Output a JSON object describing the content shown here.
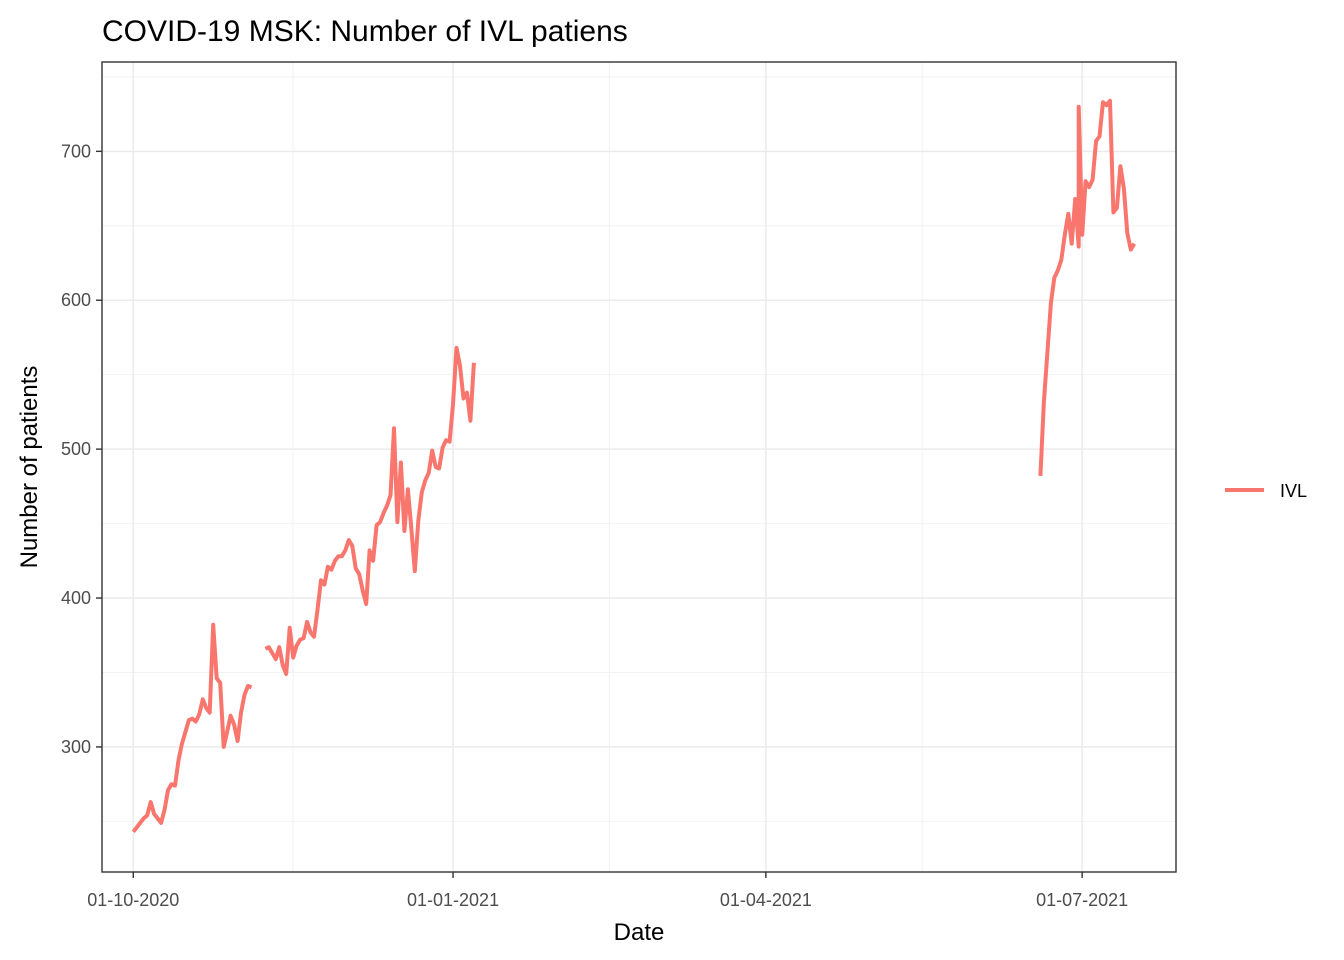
{
  "chart_data": {
    "type": "line",
    "title": "COVID-19 MSK: Number of IVL patiens",
    "xlabel": "Date",
    "ylabel": "Number of patients",
    "x_range": [
      "2020-09-22",
      "2021-07-28"
    ],
    "ylim": [
      216,
      760
    ],
    "x_ticks": [
      {
        "date": "2020-10-01",
        "label": "01-10-2020"
      },
      {
        "date": "2021-01-01",
        "label": "01-01-2021"
      },
      {
        "date": "2021-04-01",
        "label": "01-04-2021"
      },
      {
        "date": "2021-07-01",
        "label": "01-07-2021"
      }
    ],
    "x_minor_ticks": [
      "2020-11-16",
      "2021-02-15",
      "2021-05-16"
    ],
    "y_ticks": [
      300,
      400,
      500,
      600,
      700
    ],
    "y_minor_ticks": [
      250,
      350,
      450,
      550,
      650,
      750
    ],
    "grid": true,
    "legend_position": "right",
    "series": [
      {
        "name": "IVL",
        "color": "#F8766D",
        "segments": [
          [
            [
              "2020-10-01",
              243
            ],
            [
              "2020-10-02",
              246
            ],
            [
              "2020-10-03",
              249
            ],
            [
              "2020-10-04",
              252
            ],
            [
              "2020-10-05",
              254
            ],
            [
              "2020-10-06",
              263
            ],
            [
              "2020-10-07",
              255
            ],
            [
              "2020-10-08",
              252
            ],
            [
              "2020-10-09",
              249
            ],
            [
              "2020-10-10",
              258
            ],
            [
              "2020-10-11",
              271
            ],
            [
              "2020-10-12",
              275
            ],
            [
              "2020-10-13",
              274
            ],
            [
              "2020-10-14",
              291
            ],
            [
              "2020-10-15",
              302
            ],
            [
              "2020-10-16",
              310
            ],
            [
              "2020-10-17",
              318
            ],
            [
              "2020-10-18",
              319
            ],
            [
              "2020-10-19",
              317
            ],
            [
              "2020-10-20",
              322
            ],
            [
              "2020-10-21",
              332
            ],
            [
              "2020-10-22",
              326
            ],
            [
              "2020-10-23",
              323
            ],
            [
              "2020-10-24",
              382
            ],
            [
              "2020-10-25",
              346
            ],
            [
              "2020-10-26",
              343
            ],
            [
              "2020-10-27",
              300
            ],
            [
              "2020-10-28",
              310
            ],
            [
              "2020-10-29",
              321
            ],
            [
              "2020-10-30",
              315
            ],
            [
              "2020-10-31",
              304
            ],
            [
              "2020-11-01",
              323
            ],
            [
              "2020-11-02",
              335
            ],
            [
              "2020-11-03",
              341
            ],
            [
              "2020-11-04",
              340
            ]
          ],
          [
            [
              "2020-11-08",
              366
            ],
            [
              "2020-11-09",
              367
            ],
            [
              "2020-11-10",
              363
            ],
            [
              "2020-11-11",
              359
            ],
            [
              "2020-11-12",
              367
            ],
            [
              "2020-11-13",
              355
            ],
            [
              "2020-11-14",
              349
            ],
            [
              "2020-11-15",
              380
            ],
            [
              "2020-11-16",
              360
            ],
            [
              "2020-11-17",
              368
            ],
            [
              "2020-11-18",
              372
            ],
            [
              "2020-11-19",
              373
            ],
            [
              "2020-11-20",
              384
            ],
            [
              "2020-11-21",
              377
            ],
            [
              "2020-11-22",
              374
            ],
            [
              "2020-11-23",
              392
            ],
            [
              "2020-11-24",
              412
            ],
            [
              "2020-11-25",
              409
            ],
            [
              "2020-11-26",
              421
            ],
            [
              "2020-11-27",
              419
            ],
            [
              "2020-11-28",
              425
            ],
            [
              "2020-11-29",
              428
            ],
            [
              "2020-11-30",
              428
            ],
            [
              "2020-12-01",
              432
            ],
            [
              "2020-12-02",
              439
            ],
            [
              "2020-12-03",
              435
            ],
            [
              "2020-12-04",
              420
            ],
            [
              "2020-12-05",
              416
            ],
            [
              "2020-12-06",
              405
            ],
            [
              "2020-12-07",
              396
            ],
            [
              "2020-12-08",
              432
            ],
            [
              "2020-12-09",
              425
            ],
            [
              "2020-12-10",
              449
            ],
            [
              "2020-12-11",
              451
            ],
            [
              "2020-12-12",
              457
            ],
            [
              "2020-12-13",
              462
            ],
            [
              "2020-12-14",
              469
            ],
            [
              "2020-12-15",
              514
            ],
            [
              "2020-12-16",
              451
            ],
            [
              "2020-12-17",
              491
            ],
            [
              "2020-12-18",
              445
            ],
            [
              "2020-12-19",
              473
            ],
            [
              "2020-12-20",
              447
            ],
            [
              "2020-12-21",
              418
            ],
            [
              "2020-12-22",
              452
            ],
            [
              "2020-12-23",
              471
            ],
            [
              "2020-12-24",
              479
            ],
            [
              "2020-12-25",
              484
            ],
            [
              "2020-12-26",
              499
            ],
            [
              "2020-12-27",
              488
            ],
            [
              "2020-12-28",
              487
            ],
            [
              "2020-12-29",
              501
            ],
            [
              "2020-12-30",
              506
            ],
            [
              "2020-12-31",
              505
            ],
            [
              "2021-01-01",
              530
            ],
            [
              "2021-01-02",
              568
            ],
            [
              "2021-01-03",
              556
            ],
            [
              "2021-01-04",
              534
            ],
            [
              "2021-01-05",
              538
            ],
            [
              "2021-01-06",
              519
            ],
            [
              "2021-01-07",
              558
            ]
          ],
          [
            [
              "2021-06-19",
              482
            ],
            [
              "2021-06-20",
              532
            ],
            [
              "2021-06-21",
              565
            ],
            [
              "2021-06-22",
              598
            ],
            [
              "2021-06-23",
              615
            ],
            [
              "2021-06-24",
              620
            ],
            [
              "2021-06-25",
              627
            ],
            [
              "2021-06-26",
              644
            ],
            [
              "2021-06-27",
              658
            ],
            [
              "2021-06-28",
              638
            ],
            [
              "2021-06-29",
              668
            ],
            [
              "2021-06-30",
              636
            ],
            [
              "2021-06-30",
              730
            ],
            [
              "2021-07-01",
              644
            ],
            [
              "2021-07-02",
              680
            ],
            [
              "2021-07-03",
              676
            ],
            [
              "2021-07-04",
              681
            ],
            [
              "2021-07-05",
              707
            ],
            [
              "2021-07-06",
              710
            ],
            [
              "2021-07-07",
              733
            ],
            [
              "2021-07-08",
              731
            ],
            [
              "2021-07-09",
              734
            ],
            [
              "2021-07-10",
              659
            ],
            [
              "2021-07-11",
              662
            ],
            [
              "2021-07-12",
              690
            ],
            [
              "2021-07-13",
              675
            ],
            [
              "2021-07-14",
              645
            ],
            [
              "2021-07-15",
              634
            ],
            [
              "2021-07-16",
              638
            ]
          ]
        ]
      }
    ]
  }
}
